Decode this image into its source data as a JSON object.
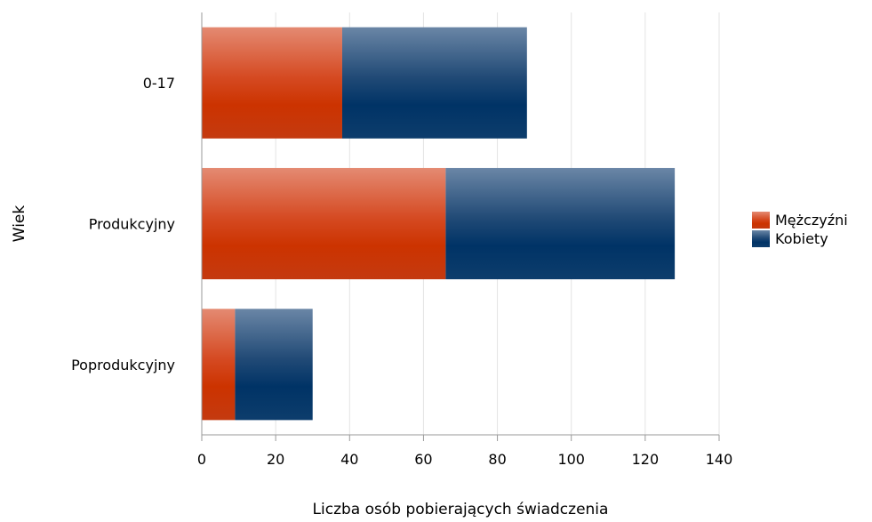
{
  "chart_data": {
    "type": "bar",
    "orientation": "horizontal",
    "stacked": true,
    "categories": [
      "0-17",
      "Produkcyjny",
      "Poprodukcyjny"
    ],
    "series": [
      {
        "name": "Mężczyźni",
        "values": [
          38,
          66,
          9
        ],
        "color": "#cc3300"
      },
      {
        "name": "Kobiety",
        "values": [
          50,
          62,
          21
        ],
        "color": "#003366"
      }
    ],
    "xlabel": "Liczba osób pobierających świadczenia",
    "ylabel": "Wiek",
    "xlim": [
      0,
      140
    ],
    "xticks": [
      "0",
      "20",
      "40",
      "60",
      "80",
      "100",
      "120",
      "140"
    ],
    "grid": "vertical",
    "legend_position": "right"
  }
}
